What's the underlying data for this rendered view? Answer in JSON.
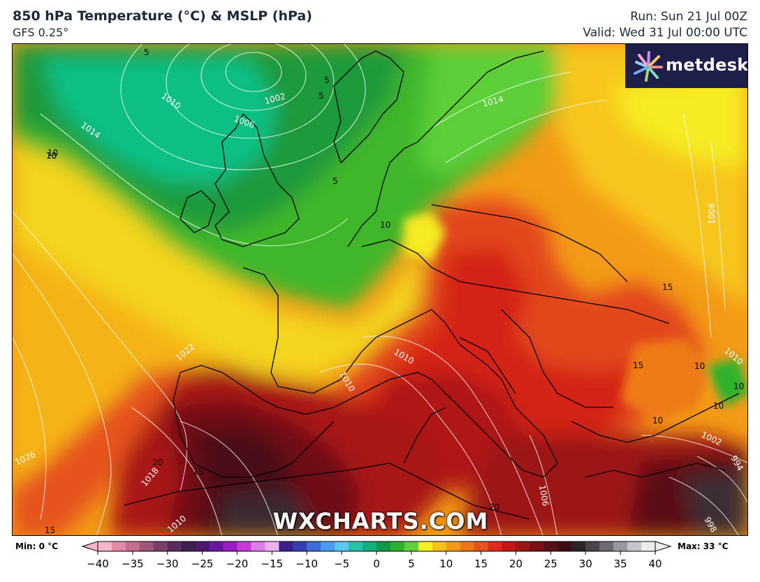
{
  "header": {
    "title": "850 hPa Temperature (°C) & MSLP (hPa)",
    "subtitle": "GFS 0.25°",
    "run": "Run: Sun 21 Jul 00Z",
    "valid": "Valid: Wed 31 Jul 00:00 UTC"
  },
  "logo": {
    "text": "metdesk"
  },
  "watermark": "WXCHARTS.COM",
  "colorbar": {
    "min_label": "Min: 0 °C",
    "max_label": "Max: 33 °C",
    "ticks": [
      "−40",
      "−35",
      "−30",
      "−25",
      "−20",
      "−15",
      "−10",
      "−5",
      "0",
      "5",
      "10",
      "15",
      "20",
      "25",
      "30",
      "35",
      "40"
    ],
    "tick_values": [
      -40,
      -35,
      -30,
      -25,
      -20,
      -15,
      -10,
      -5,
      0,
      5,
      10,
      15,
      20,
      25,
      30,
      35,
      40
    ],
    "colors": [
      "#f7b6c9",
      "#e58aa8",
      "#c66d92",
      "#a0557c",
      "#7c3f6b",
      "#5a2b5e",
      "#3d1e4f",
      "#4a1a6e",
      "#6a16a0",
      "#9a1cc4",
      "#c63bd6",
      "#e07ae6",
      "#edb0f0",
      "#3c1f8c",
      "#3540b0",
      "#3c6dd8",
      "#4b9cf0",
      "#5cc9f5",
      "#25c2a8",
      "#10b07a",
      "#109a40",
      "#2db22e",
      "#60d03a",
      "#f8f020",
      "#f6c21a",
      "#f39c18",
      "#ee7616",
      "#e4521e",
      "#e02a1c",
      "#c41616",
      "#9c1414",
      "#7a1016",
      "#581018",
      "#3e0e14",
      "#2a2428",
      "#48444a",
      "#6c6a70",
      "#9a989e",
      "#c6c4c8",
      "#ecebed"
    ]
  },
  "map": {
    "isobar_labels": [
      "1002",
      "1006",
      "1010",
      "1014",
      "1014",
      "1022",
      "1026",
      "1018",
      "1010",
      "1010",
      "1006",
      "1010",
      "1002",
      "994",
      "998",
      "1006",
      "1010"
    ],
    "temp_labels": [
      "5",
      "5",
      "5",
      "5",
      "10",
      "10",
      "10",
      "15",
      "10",
      "15",
      "10",
      "10",
      "10",
      "10",
      "20",
      "15",
      "15",
      "20"
    ]
  }
}
